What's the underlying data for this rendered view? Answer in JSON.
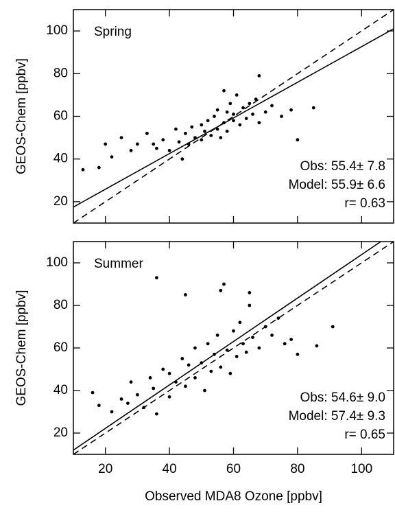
{
  "chart_data": [
    {
      "type": "scatter",
      "label": "Spring",
      "stats": [
        "Obs: 55.4± 7.8",
        "Model: 55.9± 6.6",
        "r= 0.63"
      ],
      "ylabel": "GEOS-Chem [ppbv]",
      "x": [
        13,
        18,
        20,
        22,
        25,
        28,
        30,
        33,
        35,
        36,
        38,
        40,
        42,
        43,
        45,
        46,
        47,
        48,
        50,
        50,
        51,
        52,
        53,
        54,
        55,
        55,
        56,
        57,
        58,
        58,
        59,
        60,
        60,
        61,
        62,
        63,
        64,
        65,
        66,
        67,
        68,
        70,
        72,
        75,
        78,
        80,
        85,
        68,
        44,
        57
      ],
      "y": [
        35,
        36,
        47,
        41,
        50,
        44,
        47,
        52,
        47,
        45,
        49,
        44,
        54,
        48,
        52,
        47,
        55,
        50,
        56,
        49,
        53,
        58,
        51,
        60,
        54,
        63,
        50,
        57,
        62,
        53,
        66,
        58,
        61,
        70,
        56,
        64,
        59,
        66,
        61,
        68,
        57,
        62,
        65,
        60,
        63,
        49,
        64,
        79,
        40,
        72
      ],
      "color": "#000000",
      "fit_line": {
        "x": [
          10,
          110
        ],
        "y": [
          17.5,
          101
        ]
      },
      "one_to_one": {
        "x": [
          10,
          110
        ],
        "y": [
          10,
          110
        ]
      },
      "xlim": [
        10,
        110
      ],
      "ylim": [
        10,
        110
      ],
      "xticks": [
        20,
        40,
        60,
        80,
        100
      ],
      "yticks": [
        20,
        40,
        60,
        80,
        100
      ]
    },
    {
      "type": "scatter",
      "label": "Summer",
      "stats": [
        "Obs: 54.6± 9.0",
        "Model: 57.4± 9.3",
        "r= 0.65"
      ],
      "ylabel": "GEOS-Chem [ppbv]",
      "xlabel": "Observed MDA8 Ozone [ppbv]",
      "x": [
        16,
        18,
        22,
        25,
        27,
        28,
        30,
        32,
        34,
        35,
        36,
        38,
        40,
        40,
        42,
        44,
        45,
        46,
        48,
        48,
        50,
        51,
        52,
        53,
        54,
        55,
        56,
        57,
        58,
        59,
        60,
        61,
        62,
        63,
        64,
        65,
        66,
        68,
        70,
        72,
        74,
        76,
        78,
        80,
        86,
        91,
        36,
        45,
        56,
        65
      ],
      "y": [
        39,
        33,
        30,
        36,
        34,
        44,
        38,
        32,
        46,
        41,
        29,
        50,
        37,
        48,
        44,
        55,
        42,
        52,
        46,
        60,
        53,
        40,
        62,
        49,
        57,
        66,
        51,
        90,
        59,
        48,
        68,
        56,
        72,
        62,
        58,
        80,
        65,
        60,
        70,
        66,
        74,
        62,
        64,
        57,
        61,
        70,
        93,
        85,
        87,
        86
      ],
      "color": "#000000",
      "fit_line": {
        "x": [
          10,
          106
        ],
        "y": [
          12,
          110
        ]
      },
      "one_to_one": {
        "x": [
          10,
          110
        ],
        "y": [
          10,
          110
        ]
      },
      "xlim": [
        10,
        110
      ],
      "ylim": [
        10,
        110
      ],
      "xticks": [
        20,
        40,
        60,
        80,
        100
      ],
      "yticks": [
        20,
        40,
        60,
        80,
        100
      ]
    }
  ]
}
